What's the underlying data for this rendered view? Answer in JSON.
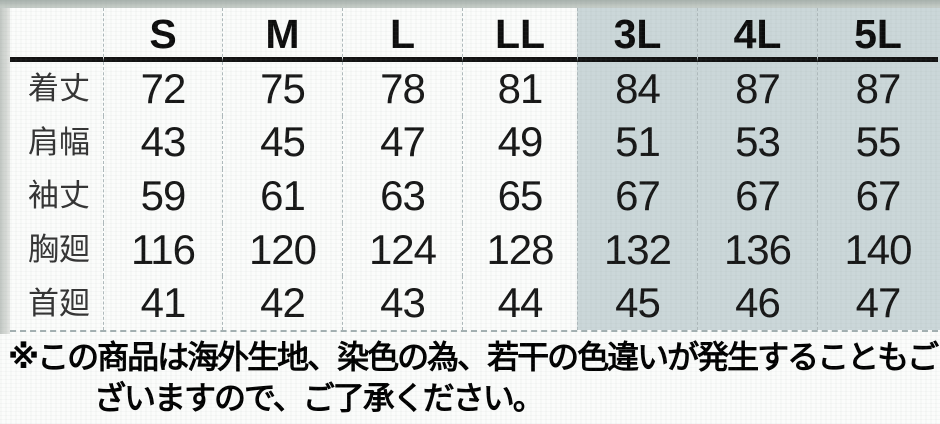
{
  "chart_data": {
    "type": "table",
    "columns": [
      "S",
      "M",
      "L",
      "LL",
      "3L",
      "4L",
      "5L"
    ],
    "highlighted_columns": [
      "3L",
      "4L",
      "5L"
    ],
    "rows": [
      {
        "label": "着丈",
        "label_chars": [
          "着",
          "丈"
        ],
        "values": [
          "72",
          "75",
          "78",
          "81",
          "84",
          "87",
          "87"
        ]
      },
      {
        "label": "肩幅",
        "label_chars": [
          "肩",
          "幅"
        ],
        "values": [
          "43",
          "45",
          "47",
          "49",
          "51",
          "53",
          "55"
        ]
      },
      {
        "label": "袖丈",
        "label_chars": [
          "袖",
          "丈"
        ],
        "values": [
          "59",
          "61",
          "63",
          "65",
          "67",
          "67",
          "67"
        ]
      },
      {
        "label": "胸廻",
        "label_chars": [
          "胸",
          "廻"
        ],
        "values": [
          "116",
          "120",
          "124",
          "128",
          "132",
          "136",
          "140"
        ]
      },
      {
        "label": "首廻",
        "label_chars": [
          "首",
          "廻"
        ],
        "values": [
          "41",
          "42",
          "43",
          "44",
          "45",
          "46",
          "47"
        ]
      }
    ]
  },
  "footnote": {
    "line1": "※この商品は海外生地、染色の為、若干の色違いが発生することもご",
    "line2": "ざいますので、ご了承ください。",
    "full_text": "※この商品は海外生地、染色の為、若干の色違いが発生することもございますので、ご了承ください。"
  },
  "colors": {
    "highlight_bg": "#cbd7d9",
    "header_rule": "#111111",
    "column_separator": "#aeb9bb",
    "text": "#161616"
  }
}
